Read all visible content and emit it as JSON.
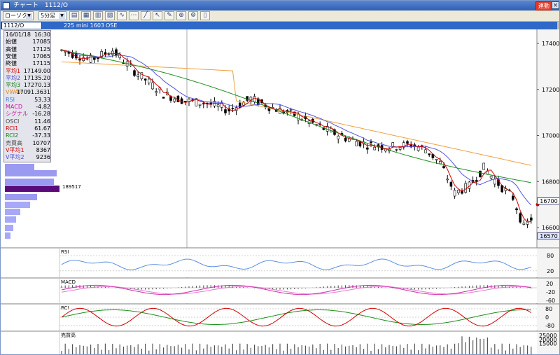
{
  "titlebar": {
    "title": "チャート　1112/O",
    "link_label": "連動",
    "close_label": "×"
  },
  "toolbar": {
    "view_select": "ローソク",
    "interval_select": "5分足",
    "tools": [
      {
        "icon": "chart-type-icon",
        "glyph": "▤"
      },
      {
        "icon": "period-icon",
        "glyph": "▦"
      },
      {
        "icon": "compare-icon",
        "glyph": "▥"
      },
      {
        "icon": "indicator-icon",
        "glyph": "▧"
      },
      {
        "icon": "line-chart-icon",
        "glyph": "∿"
      },
      {
        "icon": "trend-icon",
        "glyph": "⋯"
      },
      {
        "icon": "draw-line-icon",
        "glyph": "╱"
      },
      {
        "icon": "cursor-icon",
        "glyph": "↖"
      },
      {
        "icon": "erase-icon",
        "glyph": "✎"
      },
      {
        "icon": "zoom-icon",
        "glyph": "⊕"
      },
      {
        "icon": "settings-icon",
        "glyph": "⚙"
      },
      {
        "icon": "bars-icon",
        "glyph": "▯"
      }
    ]
  },
  "infobar": {
    "code": "1112/O",
    "description": "225 mini 1603",
    "exchange": "OSE"
  },
  "data_panel": [
    {
      "label": "16/01/18",
      "value": "16:30",
      "color": "#000000"
    },
    {
      "label": "始値",
      "value": "17085",
      "color": "#000000"
    },
    {
      "label": "高値",
      "value": "17125",
      "color": "#000000"
    },
    {
      "label": "安値",
      "value": "17065",
      "color": "#000000"
    },
    {
      "label": "終値",
      "value": "17115",
      "color": "#000000"
    },
    {
      "label": "平均1",
      "value": "17149.00",
      "color": "#d40000"
    },
    {
      "label": "平均2",
      "value": "17135.20",
      "color": "#4a4ad0"
    },
    {
      "label": "平均3",
      "value": "17270.13",
      "color": "#128012"
    },
    {
      "label": "VWAP",
      "value": "17091.3631",
      "color": "#e0891a"
    },
    {
      "label": "RSI",
      "value": "53.33",
      "color": "#3c7ad8"
    },
    {
      "label": "MACD",
      "value": "-4.82",
      "color": "#c0179c"
    },
    {
      "label": "シグナル",
      "value": "-16.28",
      "color": "#c0179c"
    },
    {
      "label": "OSCI",
      "value": "11.46",
      "color": "#444444"
    },
    {
      "label": "RCI1",
      "value": "61.67",
      "color": "#d40000"
    },
    {
      "label": "RCI2",
      "value": "-37.33",
      "color": "#128012"
    },
    {
      "label": "売買高",
      "value": "10707",
      "color": "#444444"
    },
    {
      "label": "V平均1",
      "value": "8367",
      "color": "#d40000"
    },
    {
      "label": "V平均2",
      "value": "9236",
      "color": "#4a4ad0"
    }
  ],
  "price_axis": [
    "17400",
    "17200",
    "17000",
    "16800",
    "16600"
  ],
  "price_tags": {
    "current": "16700",
    "low": "16570"
  },
  "volume_profile_label": "189517",
  "panes": {
    "rsi": {
      "label": "RSI",
      "ticks": [
        "80",
        "20"
      ]
    },
    "macd": {
      "label": "MACD",
      "ticks": [
        "20",
        "-20",
        "-60"
      ]
    },
    "rci": {
      "label": "RCI",
      "ticks": [
        "80",
        "0",
        "-80"
      ]
    },
    "volume": {
      "label": "売買高",
      "ticks": [
        "25000",
        "20000",
        "15000"
      ]
    }
  },
  "colors": {
    "ma1": "#d40000",
    "ma2": "#5555dd",
    "ma3": "#1e8f1e",
    "vwap": "#f0a040",
    "rsi": "#5b8fe0",
    "macd": "#d02fb0",
    "signal": "#d02fb0",
    "osci": "#444444",
    "rci1": "#d40000",
    "rci2": "#1e8f1e",
    "volume": "#555555"
  }
}
